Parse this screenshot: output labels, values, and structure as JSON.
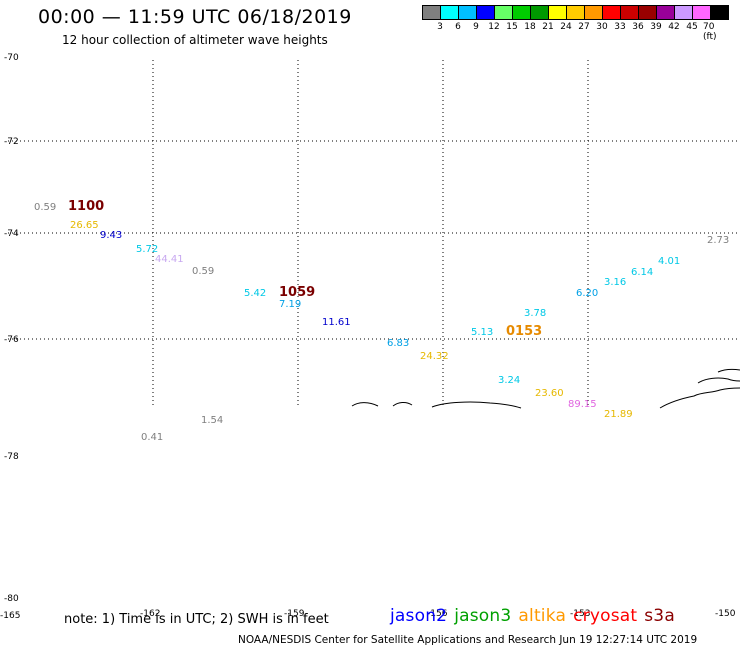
{
  "title": "00:00 — 11:59 UTC 06/18/2019",
  "subtitle": "12 hour collection of altimeter wave heights",
  "legend": {
    "colors": [
      "#7f7f7f",
      "#00ffff",
      "#00bfff",
      "#0000ff",
      "#66ff66",
      "#00cc00",
      "#009900",
      "#ffff00",
      "#ffcc00",
      "#ff9900",
      "#ff0000",
      "#cc0000",
      "#990000",
      "#990099",
      "#cc99ff",
      "#ff66ff",
      "#000000"
    ],
    "labels": [
      "3",
      "6",
      "9",
      "12",
      "15",
      "18",
      "21",
      "24",
      "27",
      "30",
      "33",
      "36",
      "39",
      "42",
      "45",
      "70 (ft)"
    ]
  },
  "axes": {
    "lat_labels": [
      "-70",
      "-72",
      "-74",
      "-76",
      "-78",
      "-80"
    ],
    "lon_labels": [
      "-165",
      "-162",
      "-159",
      "-156",
      "-153",
      "-150"
    ]
  },
  "observations": [
    {
      "text": "0.59",
      "color": "#7f7f7f"
    },
    {
      "text": "1100",
      "color": "#7a0000"
    },
    {
      "text": "26.65",
      "color": "#e6b800"
    },
    {
      "text": "9.43",
      "color": "#0000cc"
    },
    {
      "text": "5.72",
      "color": "#00c8e6"
    },
    {
      "text": "44.41",
      "color": "#c8a8f0"
    },
    {
      "text": "0.59",
      "color": "#7f7f7f"
    },
    {
      "text": "5.42",
      "color": "#00c8e6"
    },
    {
      "text": "1059",
      "color": "#7a0000"
    },
    {
      "text": "7.19",
      "color": "#00a0e6"
    },
    {
      "text": "11.61",
      "color": "#0000cc"
    },
    {
      "text": "6.83",
      "color": "#00a0e6"
    },
    {
      "text": "24.32",
      "color": "#e6b800"
    },
    {
      "text": "5.13",
      "color": "#00c8e6"
    },
    {
      "text": "0153",
      "color": "#e68a00"
    },
    {
      "text": "3.78",
      "color": "#00c8e6"
    },
    {
      "text": "6.20",
      "color": "#00a0e6"
    },
    {
      "text": "3.16",
      "color": "#00c8e6"
    },
    {
      "text": "6.14",
      "color": "#00c8e6"
    },
    {
      "text": "4.01",
      "color": "#00c8e6"
    },
    {
      "text": "2.73",
      "color": "#7f7f7f"
    },
    {
      "text": "3.24",
      "color": "#00c8e6"
    },
    {
      "text": "23.60",
      "color": "#e6b800"
    },
    {
      "text": "89.15",
      "color": "#e066e0"
    },
    {
      "text": "21.89",
      "color": "#e6b800"
    },
    {
      "text": "1.54",
      "color": "#7f7f7f"
    },
    {
      "text": "0.41",
      "color": "#7f7f7f"
    }
  ],
  "note": "note: 1) Time is in UTC; 2) SWH is in feet",
  "satellites": [
    {
      "name": "jason2",
      "color": "#0000ff"
    },
    {
      "name": "jason3",
      "color": "#00a000"
    },
    {
      "name": "altika",
      "color": "#ff9900"
    },
    {
      "name": "cryosat",
      "color": "#ff0000"
    },
    {
      "name": "s3a",
      "color": "#8b0000"
    }
  ],
  "credit": "NOAA/NESDIS Center for Satellite Applications and Research    Jun 19 12:27:14 UTC 2019"
}
